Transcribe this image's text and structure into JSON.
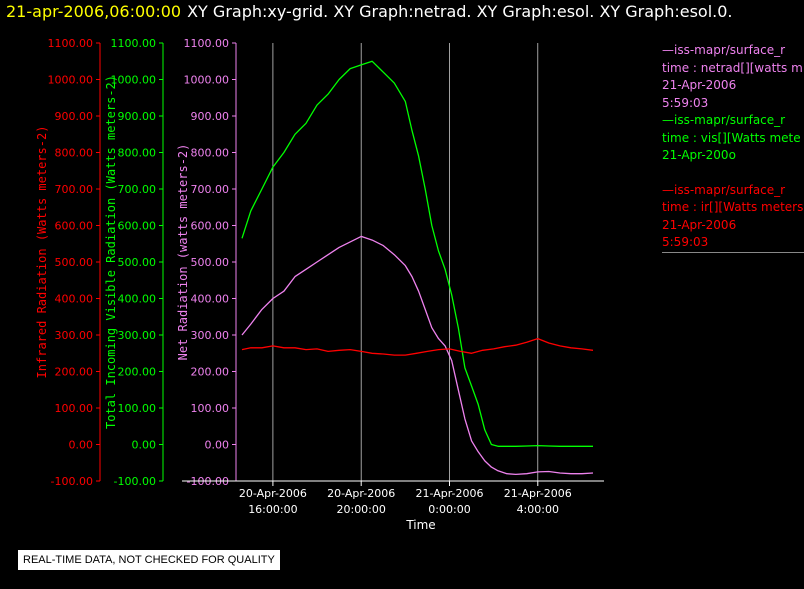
{
  "header": {
    "datetime": "21-apr-2006,06:00:00",
    "titles": "XY Graph:xy-grid.  XY Graph:netrad.  XY Graph:esol.  XY Graph:esol.0."
  },
  "colors": {
    "background": "#000000",
    "infrared": "#ff0000",
    "visible": "#00ff00",
    "net": "#ee82ee",
    "axis_x": "#ffffff",
    "grid": "#c8c8c8",
    "header_date": "#ffff00"
  },
  "legend": [
    {
      "color": "#ee82ee",
      "lines": [
        "—iss-mapr/surface_r",
        "time : netrad[][watts m",
        "21-Apr-2006",
        "5:59:03"
      ]
    },
    {
      "color": "#00ff00",
      "lines": [
        "—iss-mapr/surface_r",
        "time : vis[][Watts mete",
        "21-Apr-200o"
      ]
    },
    {
      "color": "#ff0000",
      "lines": [
        "—iss-mapr/surface_r",
        "time : ir[][Watts meters",
        "21-Apr-2006",
        "5:59:03"
      ]
    }
  ],
  "warning": "REAL-TIME DATA, NOT CHECKED FOR QUALITY",
  "chart_data": {
    "type": "line",
    "xlabel": "Time",
    "x_ticks": [
      {
        "t": 0,
        "line1": "20-Apr-2006",
        "line2": "16:00:00"
      },
      {
        "t": 4,
        "line1": "20-Apr-2006",
        "line2": "20:00:00"
      },
      {
        "t": 8,
        "line1": "21-Apr-2006",
        "line2": "0:00:00"
      },
      {
        "t": 12,
        "line1": "21-Apr-2006",
        "line2": "4:00:00"
      }
    ],
    "xlim": [
      -1.4,
      15.0
    ],
    "ylim": [
      -100,
      1100
    ],
    "y_ticks": [
      "-100.00",
      "0.00",
      "100.00",
      "200.00",
      "300.00",
      "400.00",
      "500.00",
      "600.00",
      "700.00",
      "800.00",
      "900.00",
      "1000.00",
      "1100.00"
    ],
    "axes": [
      {
        "label": "Infrared Radiation (Watts meters-2)",
        "color": "#ff0000"
      },
      {
        "label": "Total Incoming Visible Radiation (Watts meters-2)",
        "color": "#00ff00"
      },
      {
        "label": "Net Radiation (watts meters-2)",
        "color": "#ee82ee"
      }
    ],
    "grid_vertical": true,
    "series": [
      {
        "axis": 1,
        "color": "#00ff00",
        "x": [
          -1.4,
          -1.0,
          -0.5,
          0.0,
          0.5,
          1.0,
          1.5,
          2.0,
          2.5,
          3.0,
          3.5,
          4.0,
          4.5,
          5.0,
          5.5,
          6.0,
          6.3,
          6.6,
          6.9,
          7.2,
          7.5,
          7.8,
          8.1,
          8.4,
          8.7,
          9.0,
          9.3,
          9.6,
          9.9,
          10.2,
          10.6,
          11.0,
          11.5,
          12.0,
          12.5,
          13.0,
          13.5,
          14.0,
          14.5
        ],
        "y": [
          565,
          640,
          700,
          760,
          800,
          850,
          880,
          930,
          960,
          1000,
          1030,
          1040,
          1050,
          1020,
          990,
          940,
          860,
          790,
          700,
          600,
          530,
          480,
          410,
          320,
          210,
          160,
          110,
          40,
          0,
          -5,
          -5,
          -5,
          -4,
          -3,
          -4,
          -5,
          -5,
          -5,
          -5
        ]
      },
      {
        "axis": 2,
        "color": "#ee82ee",
        "x": [
          -1.4,
          -1.0,
          -0.5,
          0.0,
          0.5,
          1.0,
          1.5,
          2.0,
          2.5,
          3.0,
          3.5,
          4.0,
          4.5,
          5.0,
          5.5,
          6.0,
          6.3,
          6.6,
          6.9,
          7.2,
          7.5,
          7.8,
          8.1,
          8.4,
          8.7,
          9.0,
          9.3,
          9.6,
          9.9,
          10.2,
          10.6,
          11.0,
          11.5,
          12.0,
          12.5,
          13.0,
          13.5,
          14.0,
          14.5
        ],
        "y": [
          300,
          330,
          370,
          400,
          420,
          460,
          480,
          500,
          520,
          540,
          555,
          570,
          560,
          545,
          520,
          490,
          460,
          420,
          370,
          320,
          290,
          270,
          230,
          150,
          70,
          10,
          -20,
          -45,
          -62,
          -72,
          -80,
          -82,
          -80,
          -75,
          -74,
          -78,
          -80,
          -80,
          -78
        ]
      },
      {
        "axis": 0,
        "color": "#ff0000",
        "x": [
          -1.4,
          -1.0,
          -0.5,
          0.0,
          0.5,
          1.0,
          1.5,
          2.0,
          2.5,
          3.0,
          3.5,
          4.0,
          4.5,
          5.0,
          5.5,
          6.0,
          6.5,
          7.0,
          7.5,
          8.0,
          8.5,
          9.0,
          9.5,
          10.0,
          10.5,
          11.0,
          11.5,
          12.0,
          12.5,
          13.0,
          13.5,
          14.0,
          14.5
        ],
        "y": [
          260,
          265,
          265,
          270,
          265,
          265,
          260,
          262,
          255,
          258,
          260,
          255,
          250,
          248,
          245,
          245,
          250,
          255,
          260,
          262,
          255,
          250,
          258,
          262,
          268,
          272,
          280,
          290,
          278,
          270,
          265,
          262,
          258
        ]
      }
    ]
  }
}
